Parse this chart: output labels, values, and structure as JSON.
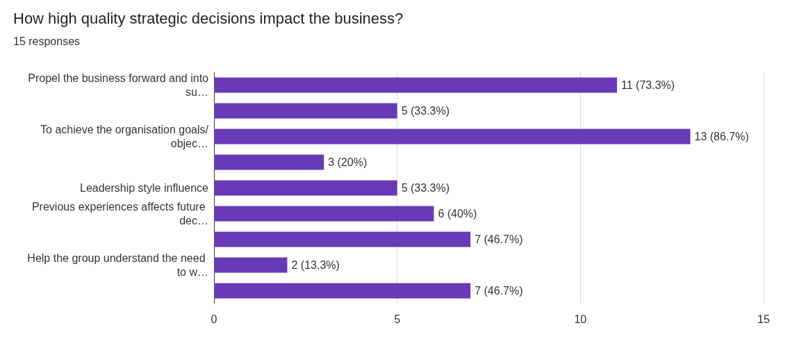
{
  "chart_data": {
    "type": "bar",
    "orientation": "horizontal",
    "title": "How high quality strategic decisions impact the business?",
    "subtitle": "15 responses",
    "categories": [
      "Propel the business forward and into su…",
      null,
      "To achieve the organisation goals/objec…",
      null,
      "Leadership style influence",
      "Previous experiences affects future dec…",
      null,
      "Help the group understand the need to w…",
      null
    ],
    "values": [
      11,
      5,
      13,
      3,
      5,
      6,
      7,
      2,
      7
    ],
    "value_labels": [
      "11 (73.3%)",
      "5 (33.3%)",
      "13 (86.7%)",
      "3 (20%)",
      "5 (33.3%)",
      "6 (40%)",
      "7 (46.7%)",
      "2 (13.3%)",
      "7 (46.7%)"
    ],
    "color": "#673ab7",
    "xlim": [
      0,
      15
    ],
    "xticks": [
      0,
      5,
      10,
      15
    ],
    "grid": "x"
  }
}
